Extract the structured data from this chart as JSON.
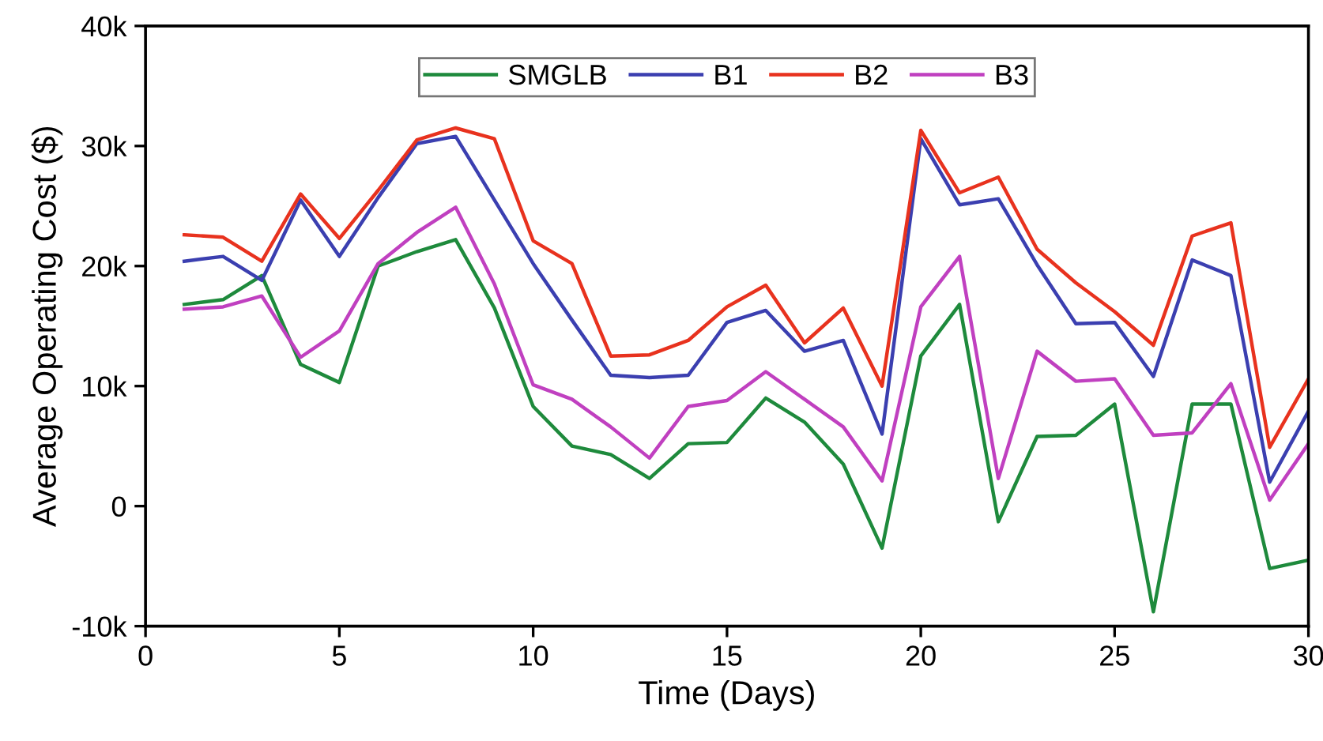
{
  "chart_data": {
    "type": "line",
    "xlabel": "Time (Days)",
    "ylabel": "Average Operating Cost ($)",
    "x": [
      1,
      2,
      3,
      4,
      5,
      6,
      7,
      8,
      9,
      10,
      11,
      12,
      13,
      14,
      15,
      16,
      17,
      18,
      19,
      20,
      21,
      22,
      23,
      24,
      25,
      26,
      27,
      28,
      29,
      30
    ],
    "series": [
      {
        "name": "SMGLB",
        "color": "#1e8a3c",
        "values": [
          16800,
          17200,
          19200,
          11800,
          10300,
          20000,
          21200,
          22200,
          16500,
          8300,
          5000,
          4300,
          2300,
          5200,
          5300,
          9000,
          7000,
          3500,
          -3500,
          12500,
          16800,
          -1300,
          5800,
          5900,
          8500,
          -8800,
          8500,
          8500,
          -5200,
          -4500
        ]
      },
      {
        "name": "B1",
        "color": "#3b3fb0",
        "values": [
          20400,
          20800,
          18800,
          25500,
          20800,
          25700,
          30200,
          30800,
          25500,
          20200,
          15500,
          10900,
          10700,
          10900,
          15300,
          16300,
          12900,
          13800,
          6000,
          30600,
          25100,
          25600,
          20100,
          15200,
          15300,
          10800,
          20500,
          19200,
          2000,
          7900
        ]
      },
      {
        "name": "B2",
        "color": "#e8321e",
        "values": [
          22600,
          22400,
          20400,
          26000,
          22300,
          26300,
          30500,
          31500,
          30600,
          22100,
          20200,
          12500,
          12600,
          13800,
          16600,
          18400,
          13600,
          16500,
          10000,
          31300,
          26100,
          27400,
          21400,
          18600,
          16200,
          13400,
          22500,
          23600,
          4900,
          10600
        ]
      },
      {
        "name": "B3",
        "color": "#c040c0",
        "values": [
          16400,
          16600,
          17500,
          12400,
          14600,
          20200,
          22800,
          24900,
          18500,
          10100,
          8900,
          6600,
          4000,
          8300,
          8800,
          11200,
          8900,
          6600,
          2100,
          16600,
          20800,
          2300,
          12900,
          10400,
          10600,
          5900,
          6100,
          10200,
          500,
          5200
        ]
      }
    ],
    "xlim": [
      0,
      30
    ],
    "xticks": [
      0,
      5,
      10,
      15,
      20,
      25,
      30
    ],
    "ylim": [
      -10000,
      40000
    ],
    "yticks": [
      {
        "value": -10000,
        "label": "-10k"
      },
      {
        "value": 0,
        "label": "0"
      },
      {
        "value": 10000,
        "label": "10k"
      },
      {
        "value": 20000,
        "label": "20k"
      },
      {
        "value": 30000,
        "label": "30k"
      },
      {
        "value": 40000,
        "label": "40k"
      }
    ],
    "grid": false,
    "legend": "top",
    "marker": "none",
    "line_style": "solid"
  }
}
